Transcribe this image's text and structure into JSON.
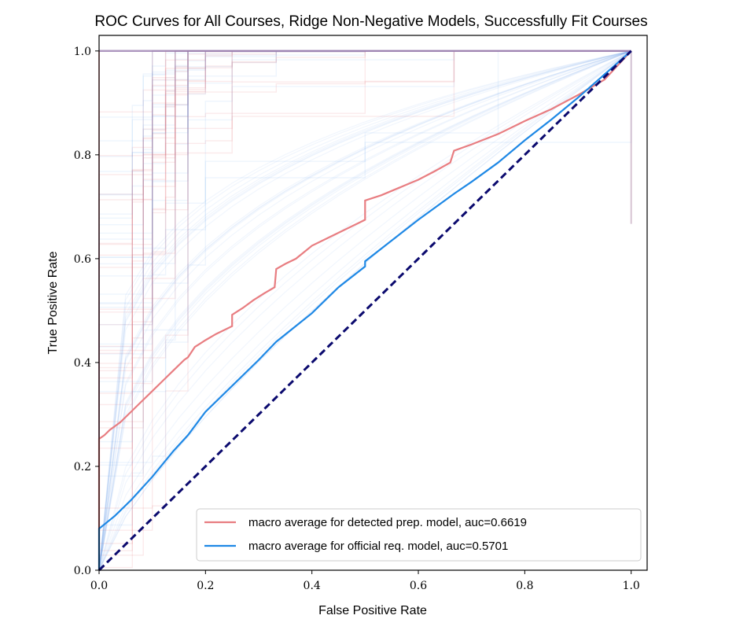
{
  "chart_data": {
    "type": "line",
    "title": "ROC Curves for All Courses, Ridge Non-Negative Models, Successfully Fit Courses",
    "xlabel": "False Positive Rate",
    "ylabel": "True Positive Rate",
    "xlim": [
      0.0,
      1.03
    ],
    "ylim": [
      0.0,
      1.03
    ],
    "xticks": [
      0.0,
      0.2,
      0.4,
      0.6,
      0.8,
      1.0
    ],
    "yticks": [
      0.0,
      0.2,
      0.4,
      0.6,
      0.8,
      1.0
    ],
    "xtick_labels": [
      "0.0",
      "0.2",
      "0.4",
      "0.6",
      "0.8",
      "1.0"
    ],
    "ytick_labels": [
      "0.0",
      "0.2",
      "0.4",
      "0.6",
      "0.8",
      "1.0"
    ],
    "grid": false,
    "legend_position": "lower-right",
    "series": [
      {
        "name": "macro average for detected prep. model, auc=0.6619",
        "color": "#e87d81",
        "x": [
          0.0,
          0.0,
          0.01,
          0.02,
          0.04,
          0.06,
          0.08,
          0.1,
          0.12,
          0.14,
          0.16,
          0.167,
          0.18,
          0.2,
          0.22,
          0.25,
          0.25,
          0.27,
          0.29,
          0.31,
          0.33,
          0.333,
          0.35,
          0.37,
          0.4,
          0.43,
          0.46,
          0.49,
          0.5,
          0.5,
          0.53,
          0.56,
          0.6,
          0.63,
          0.66,
          0.667,
          0.7,
          0.75,
          0.8,
          0.85,
          0.9,
          0.95,
          1.0
        ],
        "y": [
          0.0,
          0.253,
          0.26,
          0.27,
          0.285,
          0.305,
          0.325,
          0.345,
          0.365,
          0.385,
          0.405,
          0.41,
          0.43,
          0.443,
          0.455,
          0.47,
          0.492,
          0.505,
          0.52,
          0.533,
          0.545,
          0.58,
          0.59,
          0.6,
          0.625,
          0.64,
          0.655,
          0.67,
          0.675,
          0.712,
          0.722,
          0.735,
          0.752,
          0.768,
          0.785,
          0.808,
          0.82,
          0.84,
          0.865,
          0.888,
          0.915,
          0.945,
          1.0
        ]
      },
      {
        "name": "macro average for official req. model, auc=0.5701",
        "color": "#1e88e5",
        "x": [
          0.0,
          0.0,
          0.03,
          0.06,
          0.1,
          0.14,
          0.167,
          0.2,
          0.25,
          0.3,
          0.333,
          0.4,
          0.45,
          0.5,
          0.5,
          0.55,
          0.6,
          0.667,
          0.7,
          0.75,
          0.8,
          0.85,
          0.9,
          0.95,
          1.0
        ],
        "y": [
          0.0,
          0.08,
          0.105,
          0.135,
          0.18,
          0.23,
          0.26,
          0.305,
          0.355,
          0.405,
          0.44,
          0.495,
          0.545,
          0.585,
          0.595,
          0.635,
          0.675,
          0.725,
          0.748,
          0.785,
          0.828,
          0.868,
          0.91,
          0.955,
          1.0
        ]
      },
      {
        "name": "",
        "color": "#0b0a6e",
        "style": "dashed",
        "x": [
          0.0,
          1.0
        ],
        "y": [
          0.0,
          1.0
        ]
      }
    ]
  }
}
